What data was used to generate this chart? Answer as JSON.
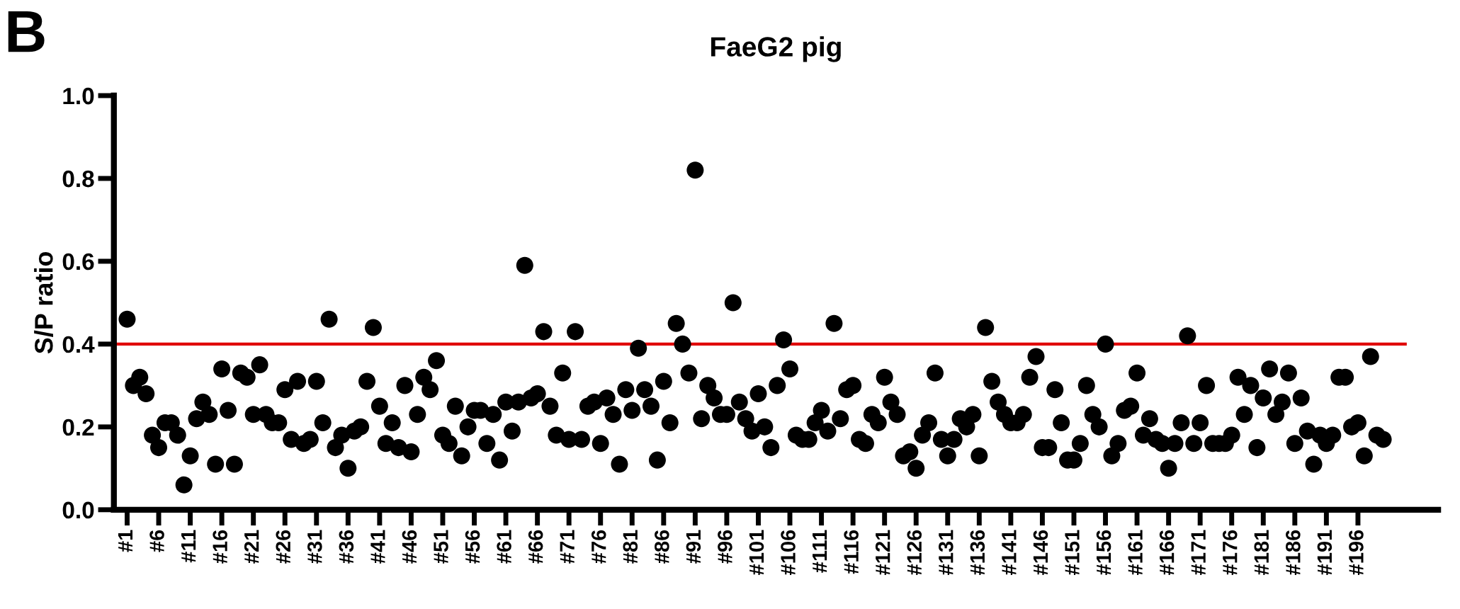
{
  "chart_data": {
    "type": "scatter",
    "title": "FaeG2 pig",
    "ylabel": "S/P ratio",
    "annotations": [
      "B"
    ],
    "categories": [
      "#1",
      null,
      null,
      null,
      null,
      "#6",
      null,
      null,
      null,
      null,
      "#11",
      null,
      null,
      null,
      null,
      "#16",
      null,
      null,
      null,
      null,
      "#21",
      null,
      null,
      null,
      null,
      "#26",
      null,
      null,
      null,
      null,
      "#31",
      null,
      null,
      null,
      null,
      "#36",
      null,
      null,
      null,
      null,
      "#41",
      null,
      null,
      null,
      null,
      "#46",
      null,
      null,
      null,
      null,
      "#51",
      null,
      null,
      null,
      null,
      "#56",
      null,
      null,
      null,
      null,
      "#61",
      null,
      null,
      null,
      null,
      "#66",
      null,
      null,
      null,
      null,
      "#71",
      null,
      null,
      null,
      null,
      "#76",
      null,
      null,
      null,
      null,
      "#81",
      null,
      null,
      null,
      null,
      "#86",
      null,
      null,
      null,
      null,
      "#91",
      null,
      null,
      null,
      null,
      "#96",
      null,
      null,
      null,
      null,
      "#101",
      null,
      null,
      null,
      null,
      "#106",
      null,
      null,
      null,
      null,
      "#111",
      null,
      null,
      null,
      null,
      "#116",
      null,
      null,
      null,
      null,
      "#121",
      null,
      null,
      null,
      null,
      "#126",
      null,
      null,
      null,
      null,
      "#131",
      null,
      null,
      null,
      null,
      "#136",
      null,
      null,
      null,
      null,
      "#141",
      null,
      null,
      null,
      null,
      "#146",
      null,
      null,
      null,
      null,
      "#151",
      null,
      null,
      null,
      null,
      "#156",
      null,
      null,
      null,
      null,
      "#161",
      null,
      null,
      null,
      null,
      "#166",
      null,
      null,
      null,
      null,
      "#171",
      null,
      null,
      null,
      null,
      "#176",
      null,
      null,
      null,
      null,
      "#181",
      null,
      null,
      null,
      null,
      "#186",
      null,
      null,
      null,
      null,
      "#191",
      null,
      null,
      null,
      null,
      "#196",
      null,
      null,
      null,
      null
    ],
    "series": [
      {
        "color": "#000000",
        "values": [
          0.46,
          0.3,
          0.32,
          0.28,
          0.18,
          0.15,
          0.21,
          0.21,
          0.18,
          0.06,
          0.13,
          0.22,
          0.26,
          0.23,
          0.11,
          0.34,
          0.24,
          0.11,
          0.33,
          0.32,
          0.23,
          0.35,
          0.23,
          0.21,
          0.21,
          0.29,
          0.17,
          0.31,
          0.16,
          0.17,
          0.31,
          0.21,
          0.46,
          0.15,
          0.18,
          0.1,
          0.19,
          0.2,
          0.31,
          0.44,
          0.25,
          0.16,
          0.21,
          0.15,
          0.3,
          0.14,
          0.23,
          0.32,
          0.29,
          0.36,
          0.18,
          0.16,
          0.25,
          0.13,
          0.2,
          0.24,
          0.24,
          0.16,
          0.23,
          0.12,
          0.26,
          0.19,
          0.26,
          0.59,
          0.27,
          0.28,
          0.43,
          0.25,
          0.18,
          0.33,
          0.17,
          0.43,
          0.17,
          0.25,
          0.26,
          0.16,
          0.27,
          0.23,
          0.11,
          0.29,
          0.24,
          0.39,
          0.29,
          0.25,
          0.12,
          0.31,
          0.21,
          0.45,
          0.4,
          0.33,
          0.82,
          0.22,
          0.3,
          0.27,
          0.23,
          0.23,
          0.5,
          0.26,
          0.22,
          0.19,
          0.28,
          0.2,
          0.15,
          0.3,
          0.41,
          0.34,
          0.18,
          0.17,
          0.17,
          0.21,
          0.24,
          0.19,
          0.45,
          0.22,
          0.29,
          0.3,
          0.17,
          0.16,
          0.23,
          0.21,
          0.32,
          0.26,
          0.23,
          0.13,
          0.14,
          0.1,
          0.18,
          0.21,
          0.33,
          0.17,
          0.13,
          0.17,
          0.22,
          0.2,
          0.23,
          0.13,
          0.44,
          0.31,
          0.26,
          0.23,
          0.21,
          0.21,
          0.23,
          0.32,
          0.37,
          0.15,
          0.15,
          0.29,
          0.21,
          0.12,
          0.12,
          0.16,
          0.3,
          0.23,
          0.2,
          0.4,
          0.13,
          0.16,
          0.24,
          0.25,
          0.33,
          0.18,
          0.22,
          0.17,
          0.16,
          0.1,
          0.16,
          0.21,
          0.42,
          0.16,
          0.21,
          0.3,
          0.16,
          0.16,
          0.16,
          0.18,
          0.32,
          0.23,
          0.3,
          0.15,
          0.27,
          0.34,
          0.23,
          0.26,
          0.33,
          0.16,
          0.27,
          0.19,
          0.11,
          0.18,
          0.16,
          0.18,
          0.32,
          0.32,
          0.2,
          0.21,
          0.13,
          0.37,
          0.18,
          0.17
        ]
      }
    ],
    "ylim": [
      0,
      1.0
    ],
    "yticks": [
      {
        "value": 0,
        "label": "0.0"
      },
      {
        "value": 0.2,
        "label": "0.2"
      },
      {
        "value": 0.4,
        "label": "0.4"
      },
      {
        "value": 0.6,
        "label": "0.6"
      },
      {
        "value": 0.8,
        "label": "0.8"
      },
      {
        "value": 1.0,
        "label": "1.0"
      }
    ],
    "ref_lines": [
      {
        "axis": "y",
        "value": 0.4,
        "color": "#e00000"
      }
    ],
    "marker": "circle",
    "grid": false,
    "legend": false
  }
}
